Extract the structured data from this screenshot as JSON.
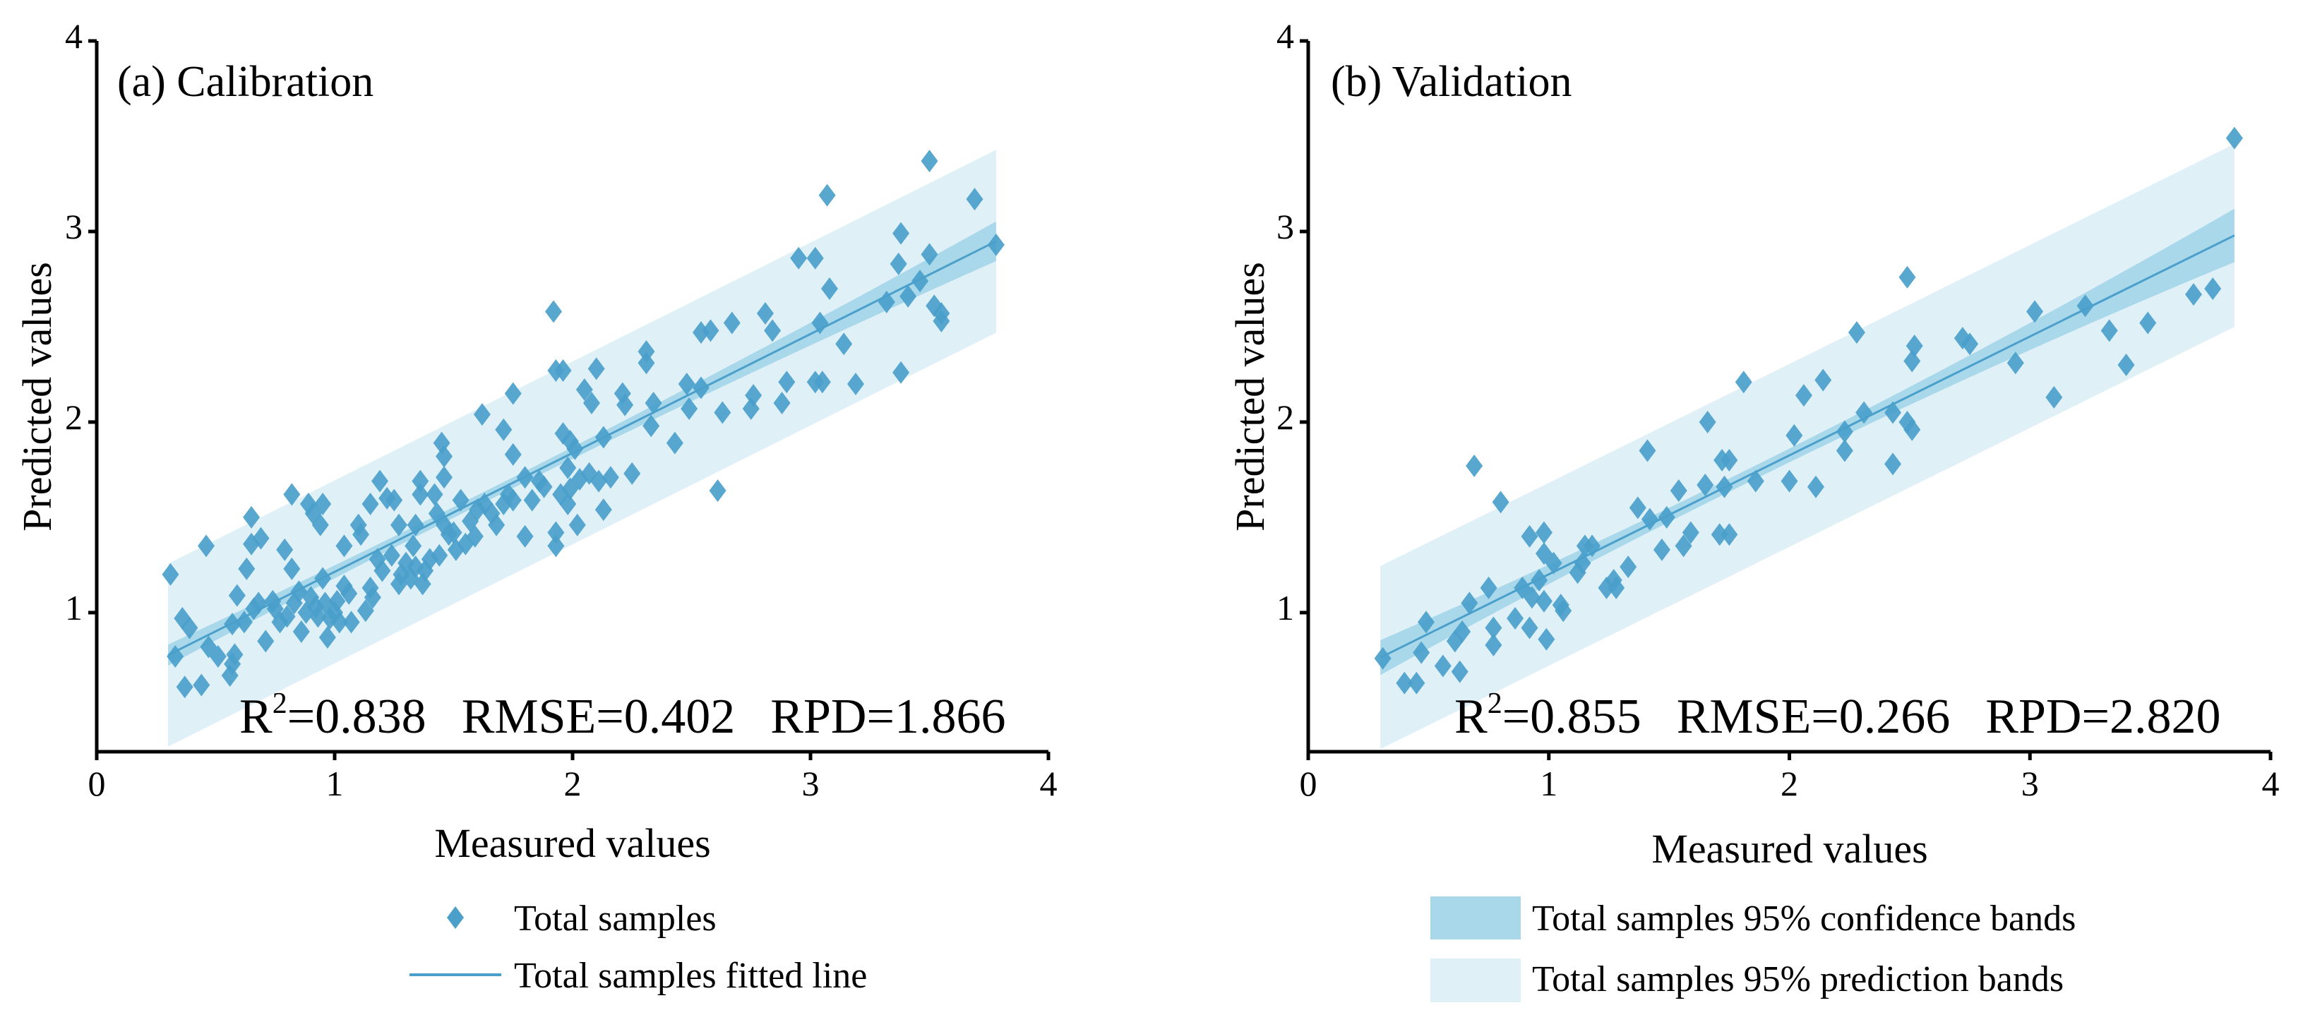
{
  "colors": {
    "point": "#4a9fcb",
    "fit_line": "#4a9fcb",
    "confidence": "#a9d8ea",
    "prediction": "#dff0f7",
    "axis": "#000000"
  },
  "legend": {
    "points": "Total samples",
    "fit_line": "Total samples fitted line",
    "confidence": "Total samples 95% confidence bands",
    "prediction": "Total samples 95% prediction bands"
  },
  "chart_data": [
    {
      "type": "scatter",
      "title": "(a) Calibration",
      "xlabel": "Measured values",
      "ylabel": "Predicted values",
      "xlim": [
        0,
        4
      ],
      "ylim": [
        0.27,
        4
      ],
      "xticks": [
        "0",
        "1",
        "2",
        "3",
        "4"
      ],
      "yticks": [
        "1",
        "2",
        "3",
        "4"
      ],
      "stats": {
        "r2_prefix": "R",
        "r2_exponent": "2",
        "r2_value": "=0.838",
        "rmse": "RMSE=0.402",
        "rpd": "RPD=1.866"
      },
      "fit": {
        "slope": 0.624,
        "intercept": 0.59,
        "x_range": [
          0.3,
          3.78
        ]
      },
      "confidence_halfwidth": {
        "min": 0.028,
        "at_x": 1.6,
        "curvature": 0.016
      },
      "prediction_halfwidth": 0.48,
      "points": [
        [
          0.31,
          1.2
        ],
        [
          0.33,
          0.77
        ],
        [
          0.37,
          0.61
        ],
        [
          0.44,
          0.62
        ],
        [
          0.36,
          0.97
        ],
        [
          0.39,
          0.92
        ],
        [
          0.46,
          1.35
        ],
        [
          0.47,
          0.82
        ],
        [
          0.51,
          0.77
        ],
        [
          0.56,
          0.67
        ],
        [
          0.57,
          0.73
        ],
        [
          0.59,
          1.09
        ],
        [
          0.57,
          0.94
        ],
        [
          0.63,
          1.23
        ],
        [
          0.65,
          1.5
        ],
        [
          0.65,
          1.36
        ],
        [
          0.69,
          1.39
        ],
        [
          0.68,
          1.05
        ],
        [
          0.71,
          0.85
        ],
        [
          0.74,
          1.06
        ],
        [
          0.77,
          0.95
        ],
        [
          0.79,
          1.33
        ],
        [
          0.82,
          1.23
        ],
        [
          0.82,
          1.62
        ],
        [
          0.85,
          1.11
        ],
        [
          0.86,
          0.9
        ],
        [
          0.89,
          1.57
        ],
        [
          0.91,
          1.52
        ],
        [
          0.94,
          1.46
        ],
        [
          0.95,
          1.57
        ],
        [
          0.92,
          1.03
        ],
        [
          0.95,
          1.18
        ],
        [
          0.97,
          0.87
        ],
        [
          0.98,
          0.97
        ],
        [
          1.01,
          1.06
        ],
        [
          1.04,
          1.35
        ],
        [
          1.04,
          1.14
        ],
        [
          1.07,
          0.95
        ],
        [
          1.1,
          1.46
        ],
        [
          1.11,
          1.41
        ],
        [
          1.13,
          1.01
        ],
        [
          1.15,
          1.13
        ],
        [
          1.16,
          1.08
        ],
        [
          1.18,
          1.28
        ],
        [
          1.15,
          1.57
        ],
        [
          1.19,
          1.69
        ],
        [
          1.22,
          1.6
        ],
        [
          1.25,
          1.59
        ],
        [
          1.27,
          1.46
        ],
        [
          1.27,
          1.15
        ],
        [
          1.3,
          1.26
        ],
        [
          1.33,
          1.35
        ],
        [
          1.34,
          1.46
        ],
        [
          1.34,
          1.24
        ],
        [
          1.36,
          1.69
        ],
        [
          1.36,
          1.62
        ],
        [
          1.37,
          1.15
        ],
        [
          1.4,
          1.28
        ],
        [
          1.42,
          1.62
        ],
        [
          1.43,
          1.52
        ],
        [
          1.45,
          1.89
        ],
        [
          1.46,
          1.46
        ],
        [
          1.46,
          1.82
        ],
        [
          1.46,
          1.71
        ],
        [
          1.48,
          1.41
        ],
        [
          1.51,
          1.33
        ],
        [
          1.53,
          1.59
        ],
        [
          1.55,
          1.36
        ],
        [
          1.59,
          1.4
        ],
        [
          1.6,
          1.54
        ],
        [
          1.62,
          2.04
        ],
        [
          1.63,
          1.57
        ],
        [
          1.68,
          1.46
        ],
        [
          1.71,
          1.57
        ],
        [
          1.71,
          1.96
        ],
        [
          1.75,
          1.59
        ],
        [
          1.75,
          1.83
        ],
        [
          1.75,
          2.15
        ],
        [
          1.8,
          1.4
        ],
        [
          1.8,
          1.71
        ],
        [
          1.83,
          1.59
        ],
        [
          1.86,
          1.69
        ],
        [
          1.92,
          2.58
        ],
        [
          1.93,
          1.42
        ],
        [
          1.93,
          1.35
        ],
        [
          1.93,
          2.27
        ],
        [
          1.96,
          2.27
        ],
        [
          1.96,
          1.94
        ],
        [
          1.98,
          1.76
        ],
        [
          1.99,
          1.9
        ],
        [
          1.98,
          1.57
        ],
        [
          1.99,
          1.65
        ],
        [
          2.02,
          1.46
        ],
        [
          2.01,
          1.86
        ],
        [
          2.05,
          2.17
        ],
        [
          2.07,
          1.73
        ],
        [
          2.08,
          2.1
        ],
        [
          2.1,
          2.28
        ],
        [
          2.11,
          1.69
        ],
        [
          2.13,
          1.54
        ],
        [
          2.13,
          1.92
        ],
        [
          2.16,
          1.71
        ],
        [
          2.21,
          2.15
        ],
        [
          2.22,
          2.09
        ],
        [
          2.25,
          1.73
        ],
        [
          2.31,
          2.37
        ],
        [
          2.31,
          2.31
        ],
        [
          2.33,
          1.98
        ],
        [
          2.34,
          2.1
        ],
        [
          2.43,
          1.89
        ],
        [
          2.48,
          2.2
        ],
        [
          2.49,
          2.07
        ],
        [
          2.54,
          2.18
        ],
        [
          2.54,
          2.47
        ],
        [
          2.58,
          2.48
        ],
        [
          2.61,
          1.64
        ],
        [
          2.63,
          2.05
        ],
        [
          2.67,
          2.52
        ],
        [
          2.75,
          2.07
        ],
        [
          2.76,
          2.14
        ],
        [
          2.81,
          2.57
        ],
        [
          2.84,
          2.48
        ],
        [
          2.88,
          2.1
        ],
        [
          2.9,
          2.21
        ],
        [
          2.95,
          2.86
        ],
        [
          3.02,
          2.86
        ],
        [
          3.02,
          2.21
        ],
        [
          3.04,
          2.52
        ],
        [
          3.05,
          2.21
        ],
        [
          3.07,
          3.19
        ],
        [
          3.08,
          2.7
        ],
        [
          3.14,
          2.41
        ],
        [
          3.19,
          2.2
        ],
        [
          3.32,
          2.63
        ],
        [
          3.37,
          2.83
        ],
        [
          3.38,
          2.99
        ],
        [
          3.38,
          2.26
        ],
        [
          3.41,
          2.66
        ],
        [
          3.46,
          2.74
        ],
        [
          3.5,
          3.37
        ],
        [
          3.5,
          2.88
        ],
        [
          3.52,
          2.61
        ],
        [
          3.55,
          2.57
        ],
        [
          3.55,
          2.53
        ],
        [
          3.69,
          3.17
        ],
        [
          3.78,
          2.93
        ],
        [
          0.75,
          1.02
        ],
        [
          0.8,
          0.98
        ],
        [
          0.83,
          1.05
        ],
        [
          0.88,
          1.0
        ],
        [
          0.9,
          1.08
        ],
        [
          0.93,
          0.98
        ],
        [
          0.96,
          1.05
        ],
        [
          1.0,
          1.0
        ],
        [
          1.02,
          0.95
        ],
        [
          1.06,
          1.1
        ],
        [
          0.58,
          0.78
        ],
        [
          0.62,
          0.95
        ],
        [
          0.66,
          1.02
        ],
        [
          1.2,
          1.22
        ],
        [
          1.24,
          1.3
        ],
        [
          1.28,
          1.2
        ],
        [
          1.32,
          1.18
        ],
        [
          1.38,
          1.22
        ],
        [
          1.44,
          1.3
        ],
        [
          1.5,
          1.42
        ],
        [
          1.57,
          1.48
        ],
        [
          1.66,
          1.52
        ],
        [
          1.73,
          1.62
        ],
        [
          1.88,
          1.66
        ],
        [
          1.95,
          1.62
        ],
        [
          2.03,
          1.7
        ]
      ]
    },
    {
      "type": "scatter",
      "title": "(b) Validation",
      "xlabel": "Measured values",
      "ylabel": "Predicted values",
      "xlim": [
        0,
        4
      ],
      "ylim": [
        0.27,
        4
      ],
      "xticks": [
        "0",
        "1",
        "2",
        "3",
        "4"
      ],
      "yticks": [
        "1",
        "2",
        "3",
        "4"
      ],
      "stats": {
        "r2_prefix": "R",
        "r2_exponent": "2",
        "r2_value": "=0.855",
        "rmse": "RMSE=0.266",
        "rpd": "RPD=2.820"
      },
      "fit": {
        "slope": 0.624,
        "intercept": 0.577,
        "x_range": [
          0.3,
          3.85
        ]
      },
      "confidence_halfwidth": {
        "min": 0.035,
        "at_x": 1.8,
        "curvature": 0.025
      },
      "prediction_halfwidth": 0.48,
      "points": [
        [
          0.31,
          0.76
        ],
        [
          0.4,
          0.63
        ],
        [
          0.45,
          0.63
        ],
        [
          0.47,
          0.79
        ],
        [
          0.49,
          0.95
        ],
        [
          0.56,
          0.72
        ],
        [
          0.61,
          0.85
        ],
        [
          0.63,
          0.69
        ],
        [
          0.64,
          0.9
        ],
        [
          0.67,
          1.05
        ],
        [
          0.69,
          1.77
        ],
        [
          0.75,
          1.13
        ],
        [
          0.77,
          0.92
        ],
        [
          0.77,
          0.83
        ],
        [
          0.8,
          1.58
        ],
        [
          0.86,
          0.97
        ],
        [
          0.89,
          1.13
        ],
        [
          0.92,
          1.4
        ],
        [
          0.92,
          0.92
        ],
        [
          0.93,
          1.08
        ],
        [
          0.96,
          1.17
        ],
        [
          0.98,
          1.42
        ],
        [
          0.98,
          1.31
        ],
        [
          0.98,
          1.06
        ],
        [
          0.99,
          0.86
        ],
        [
          1.02,
          1.26
        ],
        [
          1.05,
          1.04
        ],
        [
          1.06,
          1.01
        ],
        [
          1.12,
          1.21
        ],
        [
          1.14,
          1.26
        ],
        [
          1.15,
          1.35
        ],
        [
          1.18,
          1.35
        ],
        [
          1.24,
          1.13
        ],
        [
          1.27,
          1.17
        ],
        [
          1.28,
          1.13
        ],
        [
          1.33,
          1.24
        ],
        [
          1.37,
          1.55
        ],
        [
          1.41,
          1.85
        ],
        [
          1.42,
          1.49
        ],
        [
          1.47,
          1.33
        ],
        [
          1.49,
          1.5
        ],
        [
          1.54,
          1.64
        ],
        [
          1.56,
          1.35
        ],
        [
          1.59,
          1.42
        ],
        [
          1.65,
          1.67
        ],
        [
          1.66,
          2.0
        ],
        [
          1.71,
          1.41
        ],
        [
          1.72,
          1.8
        ],
        [
          1.73,
          1.66
        ],
        [
          1.75,
          1.8
        ],
        [
          1.75,
          1.41
        ],
        [
          1.81,
          2.21
        ],
        [
          1.86,
          1.69
        ],
        [
          2.0,
          1.69
        ],
        [
          2.02,
          1.93
        ],
        [
          2.06,
          2.14
        ],
        [
          2.11,
          1.66
        ],
        [
          2.14,
          2.22
        ],
        [
          2.23,
          1.85
        ],
        [
          2.23,
          1.95
        ],
        [
          2.28,
          2.47
        ],
        [
          2.31,
          2.05
        ],
        [
          2.43,
          2.05
        ],
        [
          2.43,
          1.78
        ],
        [
          2.49,
          2.76
        ],
        [
          2.49,
          2.0
        ],
        [
          2.51,
          1.96
        ],
        [
          2.51,
          2.32
        ],
        [
          2.52,
          2.4
        ],
        [
          2.72,
          2.44
        ],
        [
          2.75,
          2.41
        ],
        [
          2.94,
          2.31
        ],
        [
          3.02,
          2.58
        ],
        [
          3.1,
          2.13
        ],
        [
          3.23,
          2.61
        ],
        [
          3.33,
          2.48
        ],
        [
          3.4,
          2.3
        ],
        [
          3.49,
          2.52
        ],
        [
          3.68,
          2.67
        ],
        [
          3.76,
          2.7
        ],
        [
          3.85,
          3.49
        ]
      ]
    }
  ]
}
